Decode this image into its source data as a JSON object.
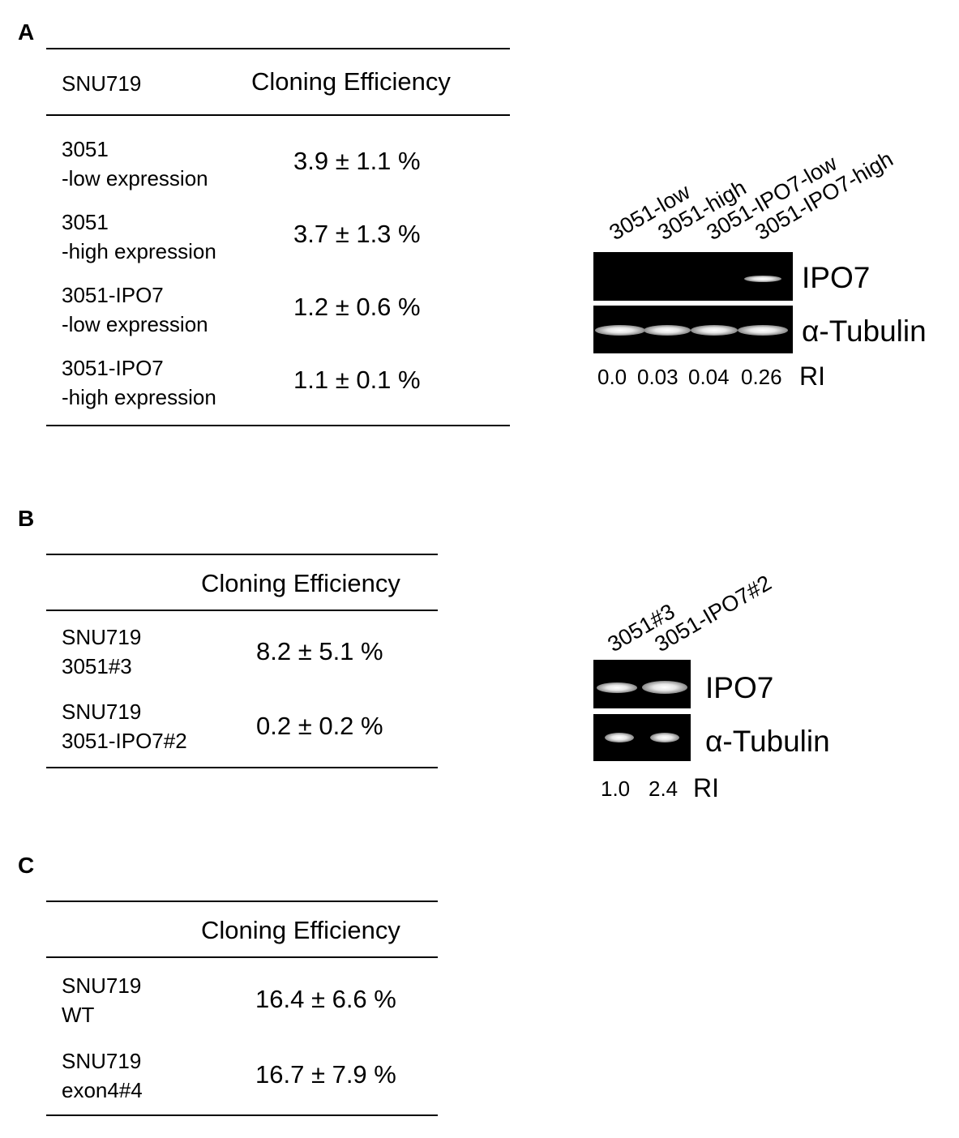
{
  "panelA": {
    "label": "A",
    "table": {
      "col1_header": "SNU719",
      "col2_header": "Cloning Efficiency",
      "rows": [
        {
          "line1": "3051",
          "line2": "-low expression",
          "value": "3.9 ± 1.1 %"
        },
        {
          "line1": "3051",
          "line2": "-high expression",
          "value": "3.7 ± 1.3 %"
        },
        {
          "line1": "3051-IPO7",
          "line2": "-low expression",
          "value": "1.2 ± 0.6 %"
        },
        {
          "line1": "3051-IPO7",
          "line2": "-high expression",
          "value": "1.1 ± 0.1 %"
        }
      ]
    },
    "blot": {
      "lanes": [
        "3051-low",
        "3051-high",
        "3051-IPO7-low",
        "3051-IPO7-high"
      ],
      "top_label": "IPO7",
      "bottom_label": "α-Tubulin",
      "ri_values": [
        "0.0",
        "0.03",
        "0.04",
        "0.26"
      ],
      "ri_label": "RI"
    }
  },
  "panelB": {
    "label": "B",
    "table": {
      "col2_header": "Cloning Efficiency",
      "rows": [
        {
          "line1": "SNU719",
          "line2": "3051#3",
          "value": "8.2 ± 5.1 %"
        },
        {
          "line1": "SNU719",
          "line2": "3051-IPO7#2",
          "value": "0.2 ± 0.2 %"
        }
      ]
    },
    "blot": {
      "lanes": [
        "3051#3",
        "3051-IPO7#2"
      ],
      "top_label": "IPO7",
      "bottom_label": "α-Tubulin",
      "ri_values": [
        "1.0",
        "2.4"
      ],
      "ri_label": "RI"
    }
  },
  "panelC": {
    "label": "C",
    "table": {
      "col2_header": "Cloning Efficiency",
      "rows": [
        {
          "line1": "SNU719",
          "line2": "WT",
          "value": "16.4 ± 6.6 %"
        },
        {
          "line1": "SNU719",
          "line2": "exon4#4",
          "value": "16.7 ± 7.9 %"
        }
      ]
    }
  }
}
